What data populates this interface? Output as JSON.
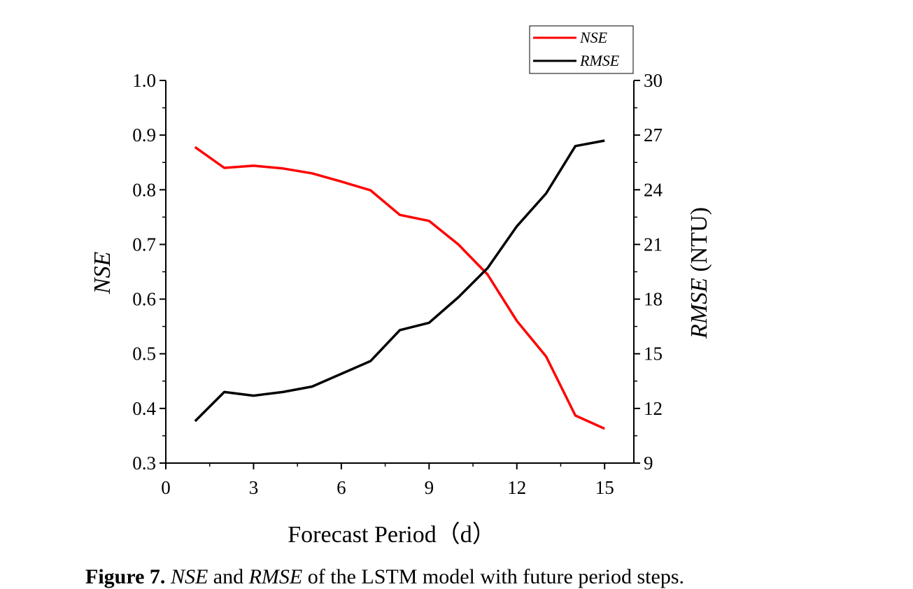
{
  "chart_data": {
    "type": "line",
    "xlabel": "Forecast Period（d）",
    "ylabel_left": "NSE",
    "ylabel_right_italic": "RMSE",
    "ylabel_right_unit": " (NTU)",
    "xlim": [
      0,
      16
    ],
    "ylim_left": [
      0.3,
      1.0
    ],
    "ylim_right": [
      9,
      30
    ],
    "x_ticks": [
      0,
      3,
      6,
      9,
      12,
      15
    ],
    "y_left_ticks": [
      "0.3",
      "0.4",
      "0.5",
      "0.6",
      "0.7",
      "0.8",
      "0.9",
      "1.0"
    ],
    "y_right_ticks": [
      "9",
      "12",
      "15",
      "18",
      "21",
      "24",
      "27",
      "30"
    ],
    "x": [
      1,
      2,
      3,
      4,
      5,
      6,
      7,
      8,
      9,
      10,
      11,
      12,
      13,
      14,
      15
    ],
    "series": [
      {
        "name": "NSE",
        "axis": "left",
        "color": "#ff0000",
        "values": [
          0.878,
          0.84,
          0.844,
          0.839,
          0.83,
          0.815,
          0.799,
          0.754,
          0.743,
          0.7,
          0.645,
          0.56,
          0.495,
          0.387,
          0.363
        ]
      },
      {
        "name": "RMSE",
        "axis": "right",
        "color": "#000000",
        "values": [
          11.3,
          12.9,
          12.7,
          12.9,
          13.2,
          13.9,
          14.6,
          16.3,
          16.7,
          18.1,
          19.7,
          22.0,
          23.8,
          26.4,
          26.7
        ]
      }
    ],
    "legend_position": "top-right"
  },
  "caption": {
    "prefix": "Figure 7.",
    "nse": "NSE",
    "and": "and",
    "rmse": "RMSE",
    "rest": "of the LSTM model with future period steps."
  }
}
